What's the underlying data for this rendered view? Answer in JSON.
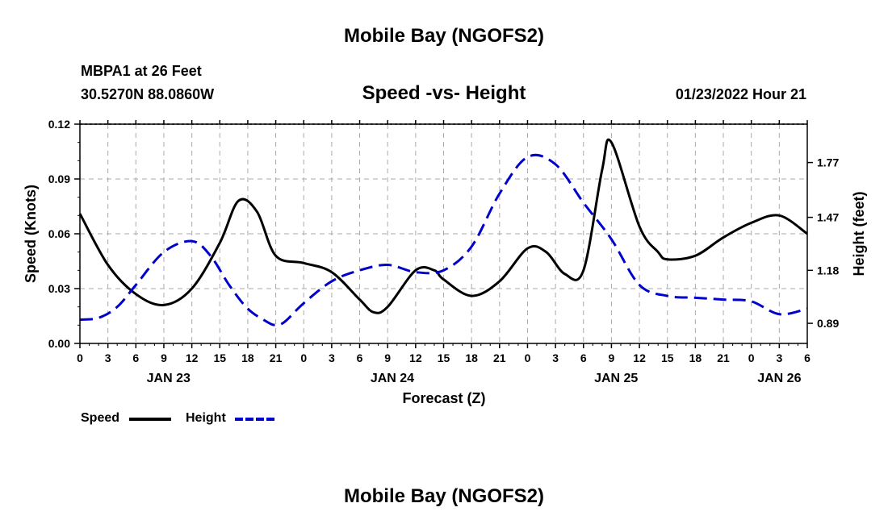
{
  "page": {
    "title_top": "Mobile Bay (NGOFS2)",
    "title_bottom": "Mobile Bay (NGOFS2)",
    "station_line": "MBPA1 at 26 Feet",
    "coords_line": "30.5270N  88.0860W",
    "chart_title": "Speed -vs- Height",
    "timestamp": "01/23/2022 Hour 21"
  },
  "chart_data": {
    "type": "line",
    "title": "Speed -vs- Height",
    "xlabel": "Forecast (Z)",
    "ylabel": "Speed (Knots)",
    "y2label": "Height (feet)",
    "ylim": [
      0,
      0.12
    ],
    "y2lim": [
      0.78,
      1.98
    ],
    "x_range_hours": [
      0,
      78
    ],
    "yticks": [
      "0.00",
      "0.03",
      "0.06",
      "0.09",
      "0.12"
    ],
    "yticks_values": [
      0,
      0.03,
      0.06,
      0.09,
      0.12
    ],
    "y2ticks": [
      "0.89",
      "1.18",
      "1.47",
      "1.77"
    ],
    "y2ticks_values": [
      0.89,
      1.18,
      1.47,
      1.77
    ],
    "xtick_labels": [
      "0",
      "3",
      "6",
      "9",
      "12",
      "15",
      "18",
      "21",
      "0",
      "3",
      "6",
      "9",
      "12",
      "15",
      "18",
      "21",
      "0",
      "3",
      "6",
      "9",
      "12",
      "15",
      "18",
      "21",
      "0",
      "3",
      "6"
    ],
    "date_labels": [
      {
        "label": "JAN 23",
        "hour": 9.5
      },
      {
        "label": "JAN 24",
        "hour": 33.5
      },
      {
        "label": "JAN 25",
        "hour": 57.5
      },
      {
        "label": "JAN 26",
        "hour": 75.0
      }
    ],
    "grid": true,
    "legend": [
      {
        "name": "Speed",
        "color": "#000000",
        "style": "solid"
      },
      {
        "name": "Height",
        "color": "#0000cc",
        "style": "dashed"
      }
    ],
    "series": [
      {
        "name": "Speed",
        "axis": "left",
        "color": "#000000",
        "style": "solid",
        "x": [
          0,
          3,
          6,
          9,
          12,
          15,
          17,
          19,
          21,
          24,
          27,
          30,
          31.5,
          33,
          36,
          38,
          39,
          42,
          45,
          48,
          50,
          52,
          54,
          56,
          57,
          60,
          62,
          63,
          66,
          69,
          72,
          75,
          78
        ],
        "y": [
          0.071,
          0.043,
          0.027,
          0.021,
          0.03,
          0.055,
          0.078,
          0.072,
          0.048,
          0.044,
          0.039,
          0.024,
          0.017,
          0.02,
          0.04,
          0.04,
          0.035,
          0.026,
          0.034,
          0.052,
          0.05,
          0.038,
          0.04,
          0.095,
          0.11,
          0.064,
          0.05,
          0.046,
          0.048,
          0.058,
          0.066,
          0.07,
          0.06
        ]
      },
      {
        "name": "Height",
        "axis": "right",
        "color": "#0000cc",
        "style": "dashed",
        "x": [
          0,
          2,
          4,
          6,
          9,
          12,
          14,
          16,
          18,
          20,
          21,
          22,
          24,
          27,
          30,
          33,
          36,
          39,
          42,
          45,
          48,
          51,
          54,
          57,
          60,
          63,
          66,
          69,
          72,
          75,
          78
        ],
        "y": [
          0.91,
          0.92,
          0.98,
          1.1,
          1.28,
          1.34,
          1.26,
          1.1,
          0.97,
          0.9,
          0.88,
          0.9,
          1.0,
          1.12,
          1.18,
          1.21,
          1.17,
          1.18,
          1.31,
          1.6,
          1.8,
          1.76,
          1.55,
          1.35,
          1.1,
          1.04,
          1.03,
          1.02,
          1.01,
          0.94,
          0.97
        ]
      }
    ]
  }
}
